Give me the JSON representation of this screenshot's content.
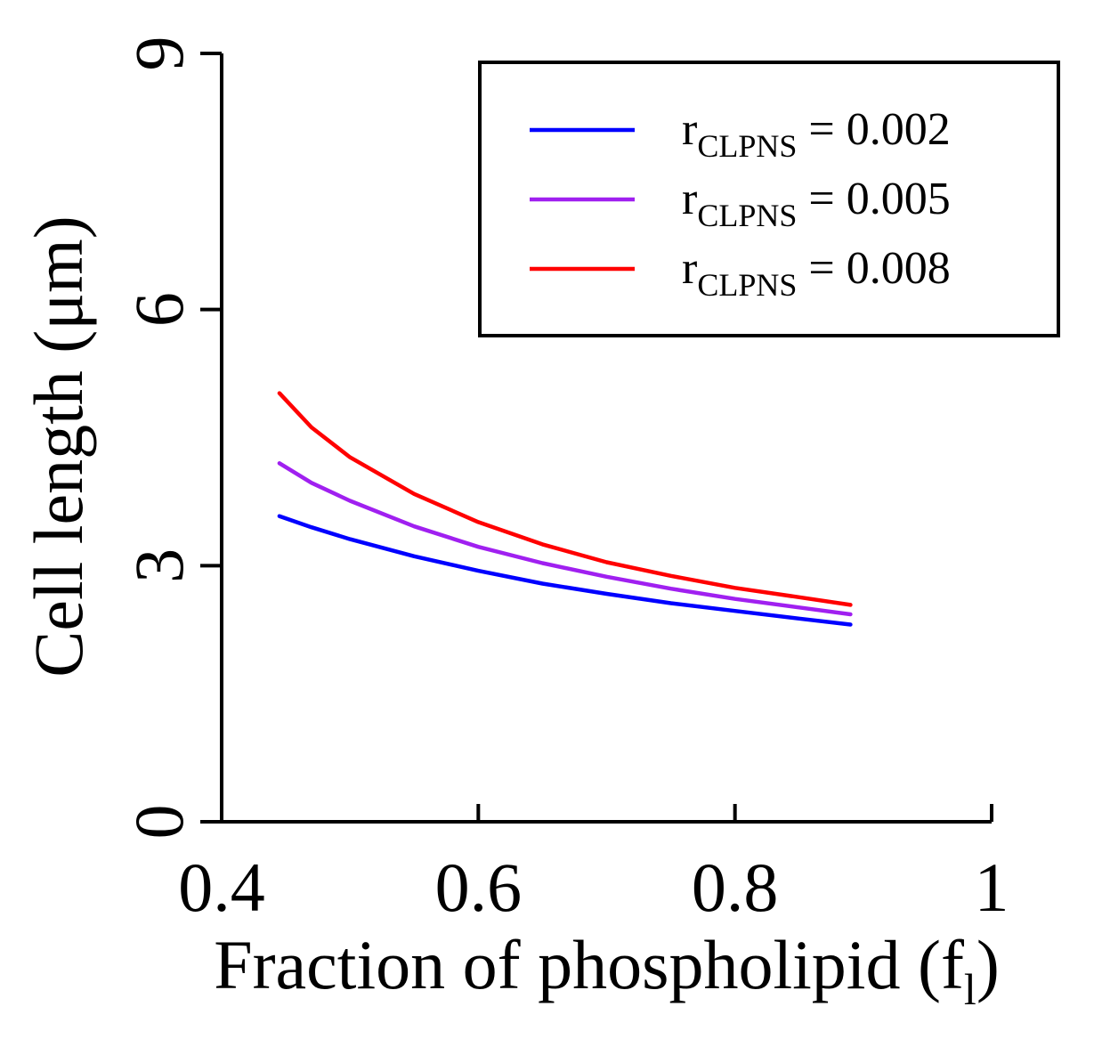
{
  "chart_data": {
    "type": "line",
    "xlabel": "Fraction of phospholipid (f",
    "xlabel_subscript": "l",
    "xlabel_close": ")",
    "ylabel": "Cell length (μm)",
    "xlim": [
      0.4,
      1.0
    ],
    "ylim": [
      0,
      9
    ],
    "xticks": [
      0.4,
      0.6,
      0.8,
      1.0
    ],
    "xtick_labels": [
      "0.4",
      "0.6",
      "0.8",
      "1"
    ],
    "yticks": [
      0,
      3,
      6,
      9
    ],
    "ytick_labels": [
      "0",
      "3",
      "6",
      "9"
    ],
    "grid": false,
    "legend_position": "top-right",
    "series": [
      {
        "name": "r",
        "name_subscript": "CLPNS",
        "name_suffix": " = 0.002",
        "color": "#0000ff",
        "x": [
          0.445,
          0.47,
          0.5,
          0.55,
          0.6,
          0.65,
          0.7,
          0.75,
          0.8,
          0.85,
          0.89
        ],
        "y": [
          3.58,
          3.45,
          3.31,
          3.11,
          2.94,
          2.79,
          2.67,
          2.56,
          2.47,
          2.38,
          2.31
        ]
      },
      {
        "name": "r",
        "name_subscript": "CLPNS",
        "name_suffix": " = 0.005",
        "color": "#a020f0",
        "x": [
          0.445,
          0.47,
          0.5,
          0.55,
          0.6,
          0.65,
          0.7,
          0.75,
          0.8,
          0.85,
          0.89
        ],
        "y": [
          4.2,
          3.97,
          3.76,
          3.46,
          3.22,
          3.03,
          2.87,
          2.73,
          2.61,
          2.51,
          2.43
        ]
      },
      {
        "name": "r",
        "name_subscript": "CLPNS",
        "name_suffix": " = 0.008",
        "color": "#ff0000",
        "x": [
          0.445,
          0.47,
          0.5,
          0.55,
          0.6,
          0.65,
          0.7,
          0.75,
          0.8,
          0.85,
          0.89
        ],
        "y": [
          5.02,
          4.62,
          4.27,
          3.84,
          3.51,
          3.25,
          3.04,
          2.88,
          2.74,
          2.63,
          2.54
        ]
      }
    ]
  }
}
